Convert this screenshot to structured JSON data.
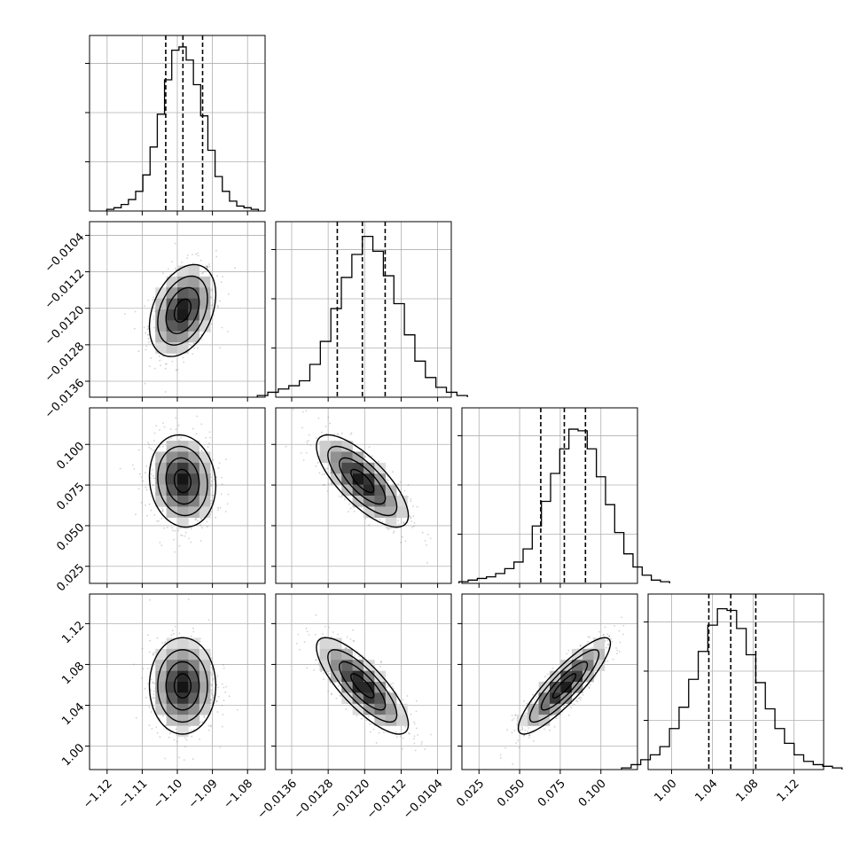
{
  "chart_data": {
    "type": "corner",
    "colors": {
      "line": "#000000",
      "grid": "#b0b0b0",
      "scatter": "#7f7f7f"
    },
    "grid": true,
    "parameters": [
      {
        "xlim": [
          -1.125,
          -1.075
        ],
        "ticks": [
          {
            "value": -1.12,
            "label": "−1.12"
          },
          {
            "value": -1.11,
            "label": "−1.11"
          },
          {
            "value": -1.1,
            "label": "−1.10"
          },
          {
            "value": -1.09,
            "label": "−1.09"
          },
          {
            "value": -1.08,
            "label": "−1.08"
          }
        ],
        "quantiles": [
          -1.1033,
          -1.0984,
          -1.0928
        ],
        "mean": -1.0985,
        "sd": 0.0045,
        "hist_values": [
          0.01,
          0.02,
          0.04,
          0.07,
          0.12,
          0.22,
          0.39,
          0.59,
          0.8,
          0.98,
          1.0,
          0.92,
          0.77,
          0.58,
          0.37,
          0.21,
          0.12,
          0.06,
          0.03,
          0.02,
          0.01
        ]
      },
      {
        "xlim": [
          -0.01395,
          -0.0101
        ],
        "ticks": [
          {
            "value": -0.0136,
            "label": "−0.0136"
          },
          {
            "value": -0.0128,
            "label": "−0.0128"
          },
          {
            "value": -0.012,
            "label": "−0.0120"
          },
          {
            "value": -0.0112,
            "label": "−0.0112"
          },
          {
            "value": -0.0104,
            "label": "−0.0104"
          }
        ],
        "quantiles": [
          -0.0126,
          -0.01205,
          -0.01155
        ],
        "mean": -0.01205,
        "sd": 0.00048,
        "hist_values": [
          0.01,
          0.03,
          0.05,
          0.07,
          0.1,
          0.2,
          0.34,
          0.54,
          0.73,
          0.87,
          0.98,
          0.89,
          0.74,
          0.57,
          0.38,
          0.22,
          0.12,
          0.06,
          0.03,
          0.01
        ]
      },
      {
        "xlim": [
          0.0145,
          0.1225
        ],
        "ticks": [
          {
            "value": 0.025,
            "label": "0.025"
          },
          {
            "value": 0.05,
            "label": "0.050"
          },
          {
            "value": 0.075,
            "label": "0.075"
          },
          {
            "value": 0.1,
            "label": "0.100"
          }
        ],
        "quantiles": [
          0.063,
          0.0775,
          0.0905
        ],
        "mean": 0.0775,
        "sd": 0.0135,
        "hist_values": [
          0.01,
          0.02,
          0.03,
          0.04,
          0.06,
          0.09,
          0.13,
          0.21,
          0.35,
          0.5,
          0.67,
          0.82,
          0.94,
          0.93,
          0.82,
          0.65,
          0.48,
          0.31,
          0.18,
          0.1,
          0.05,
          0.02,
          0.01
        ]
      },
      {
        "xlim": [
          0.977,
          1.149
        ],
        "ticks": [
          {
            "value": 1.0,
            "label": "1.00"
          },
          {
            "value": 1.04,
            "label": "1.04"
          },
          {
            "value": 1.08,
            "label": "1.08"
          },
          {
            "value": 1.12,
            "label": "1.12"
          }
        ],
        "quantiles": [
          1.0365,
          1.058,
          1.0825
        ],
        "mean": 1.059,
        "sd": 0.0225,
        "hist_values": [
          0.01,
          0.03,
          0.06,
          0.09,
          0.14,
          0.25,
          0.38,
          0.55,
          0.72,
          0.88,
          0.98,
          0.97,
          0.86,
          0.7,
          0.53,
          0.37,
          0.25,
          0.16,
          0.09,
          0.05,
          0.03,
          0.02,
          0.01
        ]
      }
    ],
    "correlations": [
      [
        1,
        0.35,
        -0.1,
        0.0
      ],
      [
        0.35,
        1,
        -0.75,
        -0.8
      ],
      [
        -0.1,
        -0.75,
        1,
        0.88
      ],
      [
        0.0,
        -0.8,
        0.88,
        1
      ]
    ],
    "contour_levels_sigma": [
      0.5,
      1.0,
      1.5,
      2.0
    ]
  }
}
